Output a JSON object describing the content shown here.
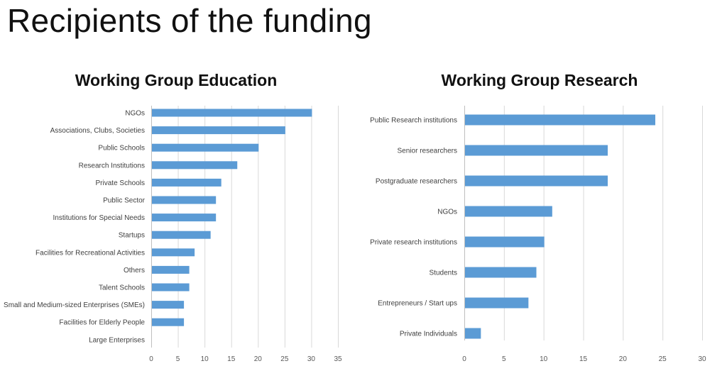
{
  "slide": {
    "title": "Recipients of the funding"
  },
  "chart_data": [
    {
      "type": "bar",
      "orientation": "horizontal",
      "title": "Working Group Education",
      "xlabel": "",
      "ylabel": "",
      "categories": [
        "NGOs",
        "Associations, Clubs, Societies",
        "Public Schools",
        "Research Institutions",
        "Private Schools",
        "Public Sector",
        "Institutions for Special Needs",
        "Startups",
        "Facilities for Recreational Activities",
        "Others",
        "Talent Schools",
        "Small and Medium-sized Enterprises (SMEs)",
        "Facilities for Elderly People",
        "Large Enterprises"
      ],
      "values": [
        30,
        25,
        20,
        16,
        13,
        12,
        12,
        11,
        8,
        7,
        7,
        6,
        6,
        0
      ],
      "xlim": [
        0,
        35
      ],
      "xticks": [
        0,
        5,
        10,
        15,
        20,
        25,
        30,
        35
      ],
      "grid": true,
      "color": "#5b9bd5"
    },
    {
      "type": "bar",
      "orientation": "horizontal",
      "title": "Working Group Research",
      "xlabel": "",
      "ylabel": "",
      "categories": [
        "Public Research institutions",
        "Senior researchers",
        "Postgraduate researchers",
        "NGOs",
        "Private research institutions",
        "Students",
        "Entrepreneurs / Start ups",
        "Private Individuals"
      ],
      "values": [
        24,
        18,
        18,
        11,
        10,
        9,
        8,
        2
      ],
      "xlim": [
        0,
        30
      ],
      "xticks": [
        0,
        5,
        10,
        15,
        20,
        25,
        30
      ],
      "grid": true,
      "color": "#5b9bd5"
    }
  ]
}
